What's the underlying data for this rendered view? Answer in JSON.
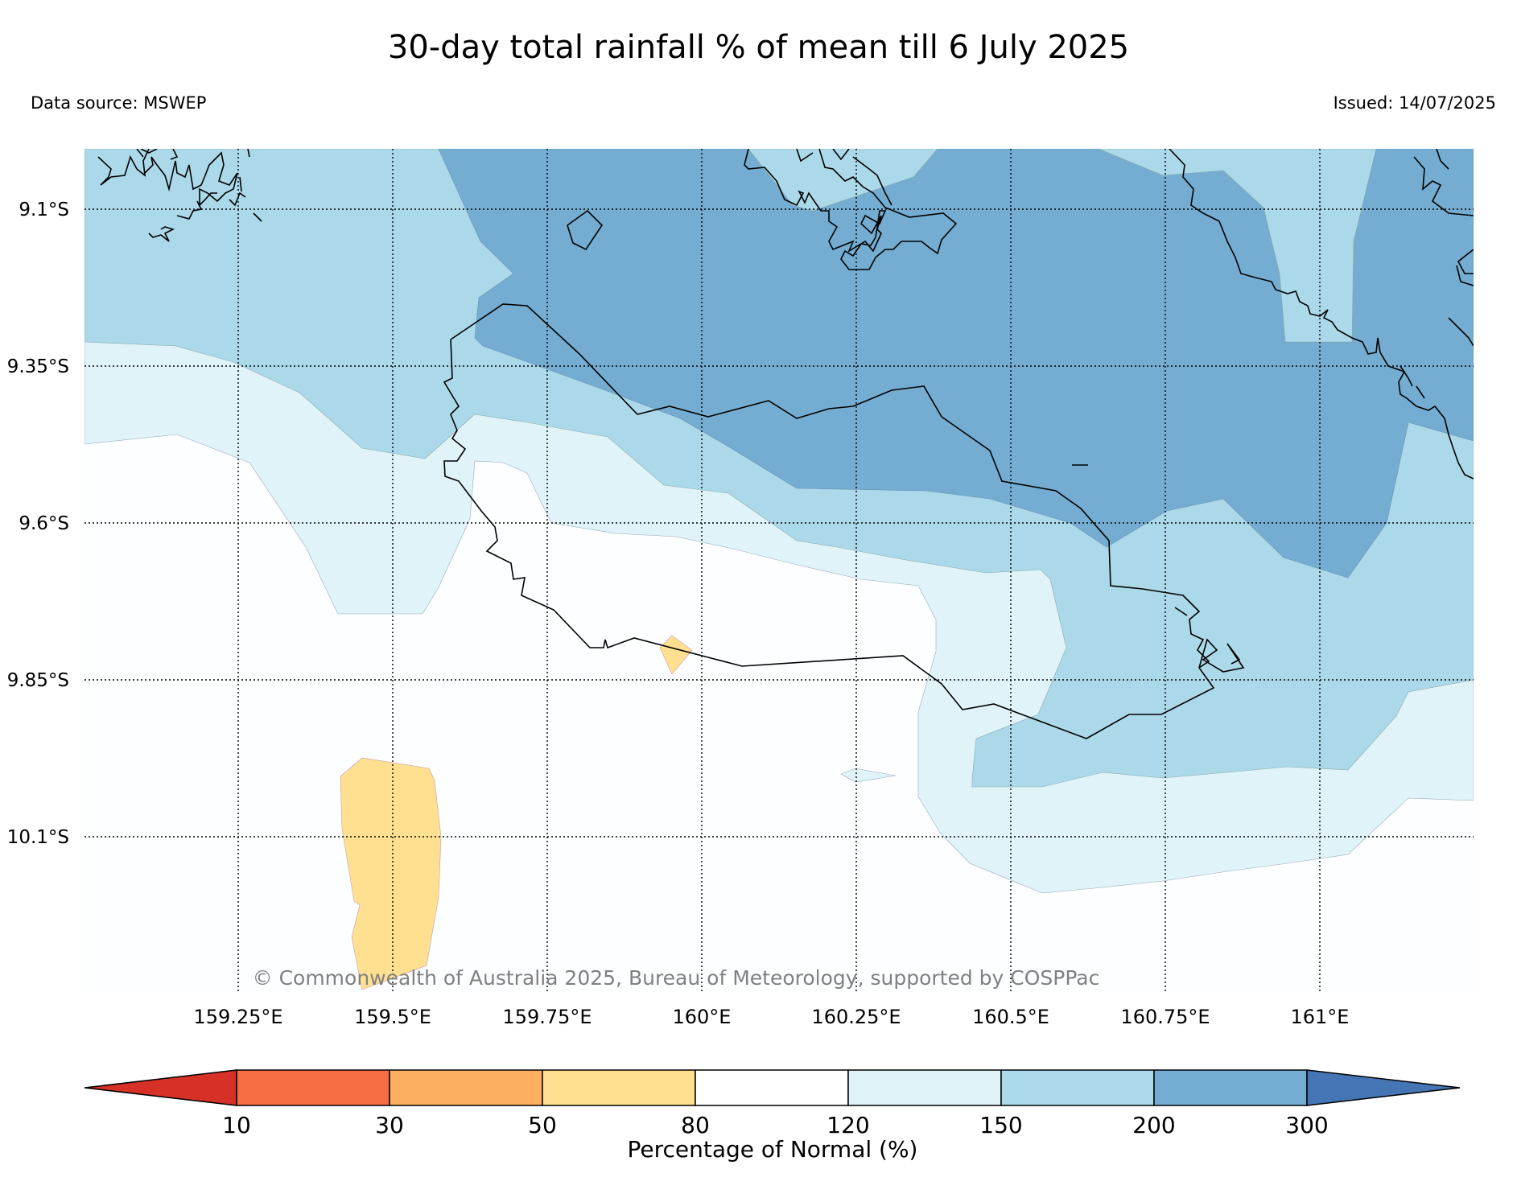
{
  "header": {
    "title": "30-day total rainfall % of mean till 6 July 2025",
    "data_source": "Data source: MSWEP",
    "issued": "Issued: 14/07/2025"
  },
  "map": {
    "lat_labels": [
      "9.1°S",
      "9.35°S",
      "9.6°S",
      "9.85°S",
      "10.1°S"
    ],
    "lon_labels": [
      "159.25°E",
      "159.5°E",
      "159.75°E",
      "160°E",
      "160.25°E",
      "160.5°E",
      "160.75°E",
      "161°E"
    ],
    "copyright": "© Commonwealth of Australia 2025, Bureau of Meteorology, supported by COSPPac",
    "lon_range": [
      159.0,
      161.25
    ],
    "lat_range": [
      -10.35,
      -9.0
    ]
  },
  "colorbar": {
    "title": "Percentage of Normal (%)",
    "ticks": [
      "10",
      "30",
      "50",
      "80",
      "120",
      "150",
      "200",
      "300"
    ],
    "colors": {
      "lt10": "#d73027",
      "10_30": "#f46d43",
      "30_50": "#fdae61",
      "50_80": "#fee090",
      "80_120": "#ffffff",
      "120_150": "#e0f3f8",
      "150_200": "#abd9e9",
      "200_300": "#74add1",
      "gt300": "#4575b4"
    }
  }
}
